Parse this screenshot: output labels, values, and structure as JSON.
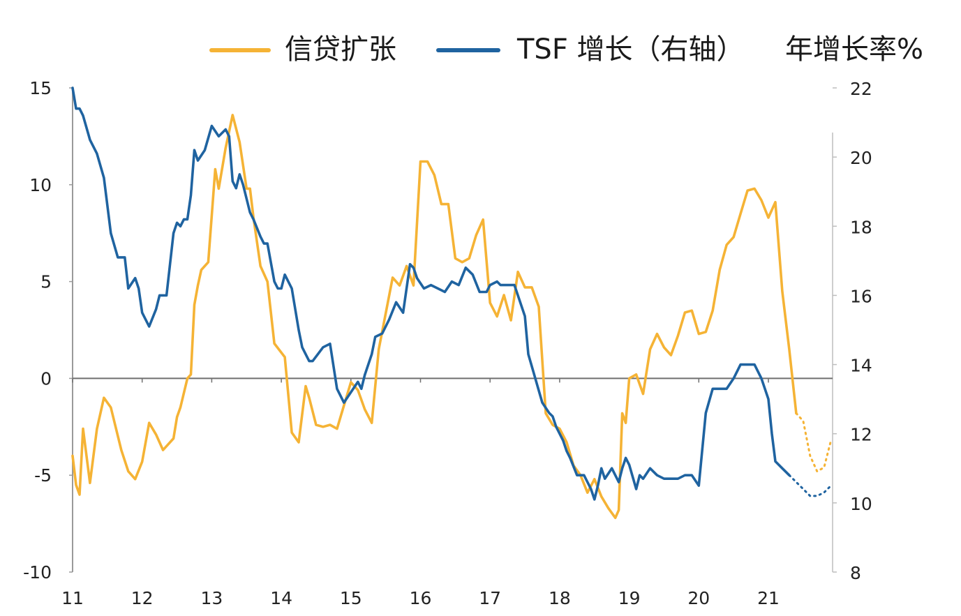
{
  "chart_data": {
    "type": "line",
    "legend": [
      {
        "label": "信贷扩张",
        "color": "#F5B335"
      },
      {
        "label": "TSF 增长（右轴）",
        "color": "#1F63A0"
      }
    ],
    "unit_label": "年增长率%",
    "x_ticks": [
      "11",
      "12",
      "13",
      "14",
      "15",
      "16",
      "17",
      "18",
      "19",
      "20",
      "21"
    ],
    "y_left": {
      "ticks": [
        "15",
        "10",
        "5",
        "0",
        "-5",
        "-10"
      ],
      "range": [
        -10,
        15
      ]
    },
    "y_right": {
      "ticks": [
        "22",
        "20",
        "18",
        "16",
        "14",
        "12",
        "10",
        "8"
      ],
      "range": [
        8,
        22
      ]
    },
    "series": [
      {
        "name": "信贷扩张",
        "axis": "left",
        "color": "#F5B335",
        "x": [
          2011.0,
          2011.05,
          2011.1,
          2011.15,
          2011.25,
          2011.35,
          2011.45,
          2011.55,
          2011.7,
          2011.8,
          2011.9,
          2012.0,
          2012.1,
          2012.2,
          2012.3,
          2012.45,
          2012.5,
          2012.55,
          2012.65,
          2012.7,
          2012.75,
          2012.8,
          2012.85,
          2012.95,
          2013.05,
          2013.1,
          2013.2,
          2013.3,
          2013.4,
          2013.5,
          2013.55,
          2013.6,
          2013.7,
          2013.8,
          2013.9,
          2014.05,
          2014.15,
          2014.25,
          2014.35,
          2014.4,
          2014.5,
          2014.6,
          2014.7,
          2014.8,
          2014.9,
          2015.0,
          2015.1,
          2015.2,
          2015.3,
          2015.4,
          2015.6,
          2015.7,
          2015.8,
          2015.9,
          2016.0,
          2016.1,
          2016.2,
          2016.3,
          2016.4,
          2016.5,
          2016.6,
          2016.7,
          2016.8,
          2016.9,
          2017.0,
          2017.1,
          2017.2,
          2017.3,
          2017.4,
          2017.5,
          2017.6,
          2017.7,
          2017.8,
          2017.9,
          2018.0,
          2018.1,
          2018.2,
          2018.3,
          2018.4,
          2018.5,
          2018.6,
          2018.7,
          2018.8,
          2018.85,
          2018.9,
          2018.95,
          2019.0,
          2019.1,
          2019.2,
          2019.3,
          2019.4,
          2019.5,
          2019.6,
          2019.7,
          2019.8,
          2019.9,
          2020.0,
          2020.1,
          2020.2,
          2020.3,
          2020.4,
          2020.5,
          2020.6,
          2020.7,
          2020.8,
          2020.9,
          2021.0,
          2021.1,
          2021.2,
          2021.3,
          2021.4
        ],
        "y": [
          -4,
          -5.5,
          -6,
          -2.6,
          -5.4,
          -2.6,
          -1,
          -1.5,
          -3.7,
          -4.8,
          -5.2,
          -4.3,
          -2.3,
          -2.9,
          -3.7,
          -3.1,
          -2,
          -1.5,
          0,
          0.2,
          3.8,
          4.8,
          5.6,
          6,
          10.8,
          9.8,
          11.9,
          13.6,
          12.2,
          9.8,
          9.8,
          8.3,
          5.8,
          5,
          1.8,
          1.1,
          -2.8,
          -3.3,
          -0.4,
          -1,
          -2.4,
          -2.5,
          -2.4,
          -2.6,
          -1.4,
          -0.2,
          -0.6,
          -1.6,
          -2.3,
          1.5,
          5.2,
          4.8,
          5.8,
          4.8,
          11.2,
          11.2,
          10.5,
          9,
          9,
          6.2,
          6,
          6.2,
          7.4,
          8.2,
          3.9,
          3.2,
          4.3,
          3,
          5.5,
          4.7,
          4.7,
          3.7,
          -1.8,
          -2.4,
          -2.6,
          -3.3,
          -4.5,
          -5,
          -5.9,
          -5.2,
          -6.1,
          -6.7,
          -7.2,
          -6.8,
          -1.8,
          -2.3,
          0,
          0.2,
          -0.8,
          1.5,
          2.3,
          1.6,
          1.2,
          2.2,
          3.4,
          3.5,
          2.3,
          2.4,
          3.5,
          5.6,
          6.9,
          7.3,
          8.5,
          9.7,
          9.8,
          9.2,
          8.3,
          9.1,
          4.5,
          1.5,
          -1.8
        ],
        "forecast_x": [
          2021.4,
          2021.5,
          2021.6,
          2021.7,
          2021.8,
          2021.9
        ],
        "forecast_y": [
          -1.8,
          -2.2,
          -4,
          -4.8,
          -4.6,
          -3.2
        ]
      },
      {
        "name": "TSF 增长（右轴）",
        "axis": "right",
        "color": "#1F63A0",
        "x": [
          2011.0,
          2011.05,
          2011.1,
          2011.15,
          2011.25,
          2011.35,
          2011.45,
          2011.55,
          2011.65,
          2011.75,
          2011.8,
          2011.9,
          2011.95,
          2012.0,
          2012.1,
          2012.2,
          2012.25,
          2012.35,
          2012.45,
          2012.5,
          2012.55,
          2012.6,
          2012.65,
          2012.7,
          2012.75,
          2012.8,
          2012.9,
          2013.0,
          2013.1,
          2013.2,
          2013.25,
          2013.3,
          2013.35,
          2013.4,
          2013.45,
          2013.55,
          2013.6,
          2013.7,
          2013.75,
          2013.8,
          2013.9,
          2013.95,
          2014.0,
          2014.05,
          2014.15,
          2014.25,
          2014.3,
          2014.4,
          2014.45,
          2014.6,
          2014.7,
          2014.8,
          2014.9,
          2015.0,
          2015.1,
          2015.15,
          2015.2,
          2015.3,
          2015.35,
          2015.45,
          2015.55,
          2015.65,
          2015.75,
          2015.85,
          2015.9,
          2015.95,
          2016.05,
          2016.15,
          2016.25,
          2016.35,
          2016.45,
          2016.55,
          2016.65,
          2016.75,
          2016.85,
          2016.95,
          2017.0,
          2017.1,
          2017.15,
          2017.25,
          2017.35,
          2017.4,
          2017.5,
          2017.55,
          2017.65,
          2017.75,
          2017.85,
          2017.9,
          2017.95,
          2018.05,
          2018.1,
          2018.15,
          2018.25,
          2018.35,
          2018.45,
          2018.5,
          2018.55,
          2018.6,
          2018.65,
          2018.75,
          2018.85,
          2018.9,
          2018.95,
          2019.0,
          2019.1,
          2019.15,
          2019.2,
          2019.3,
          2019.4,
          2019.5,
          2019.6,
          2019.7,
          2019.8,
          2019.9,
          2020.0,
          2020.1,
          2020.2,
          2020.3,
          2020.4,
          2020.5,
          2020.6,
          2020.7,
          2020.8,
          2020.9,
          2021.0,
          2021.05,
          2021.1,
          2021.2,
          2021.3
        ],
        "y": [
          22,
          21.4,
          21.4,
          21.2,
          20.5,
          20.1,
          19.4,
          17.8,
          17.1,
          17.1,
          16.2,
          16.5,
          16.2,
          15.5,
          15.1,
          15.6,
          16,
          16,
          17.8,
          18.1,
          18,
          18.2,
          18.2,
          18.9,
          20.2,
          19.9,
          20.2,
          20.9,
          20.6,
          20.8,
          20.6,
          19.3,
          19.1,
          19.5,
          19.2,
          18.4,
          18.2,
          17.7,
          17.5,
          17.5,
          16.4,
          16.2,
          16.2,
          16.6,
          16.2,
          15,
          14.5,
          14.1,
          14.1,
          14.5,
          14.6,
          13.3,
          12.9,
          13.2,
          13.5,
          13.3,
          13.7,
          14.3,
          14.8,
          14.9,
          15.3,
          15.8,
          15.5,
          16.9,
          16.8,
          16.5,
          16.2,
          16.3,
          16.2,
          16.1,
          16.4,
          16.3,
          16.8,
          16.6,
          16.1,
          16.1,
          16.3,
          16.4,
          16.3,
          16.3,
          16.3,
          16,
          15.4,
          14.3,
          13.6,
          12.9,
          12.6,
          12.5,
          12.2,
          11.8,
          11.5,
          11.3,
          10.8,
          10.8,
          10.4,
          10.1,
          10.5,
          11,
          10.7,
          11,
          10.6,
          11,
          11.3,
          11.1,
          10.4,
          10.8,
          10.7,
          11,
          10.8,
          10.7,
          10.7,
          10.7,
          10.8,
          10.8,
          10.5,
          12.6,
          13.3,
          13.3,
          13.3,
          13.6,
          14,
          14,
          14,
          13.6,
          13,
          12,
          11.2,
          11,
          10.8
        ],
        "forecast_x": [
          2021.3,
          2021.4,
          2021.5,
          2021.6,
          2021.7,
          2021.8,
          2021.9
        ],
        "forecast_y": [
          10.8,
          10.6,
          10.4,
          10.2,
          10.2,
          10.3,
          10.5
        ]
      }
    ]
  }
}
